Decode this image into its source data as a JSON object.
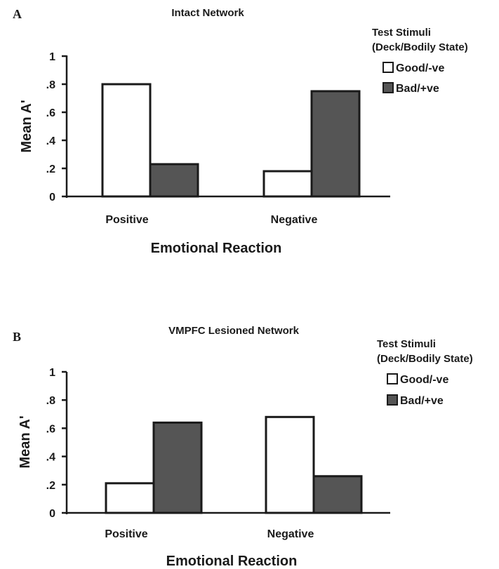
{
  "colors": {
    "good": "#ffffff",
    "bad": "#555555",
    "ink": "#1a1a1a"
  },
  "legend_title_1": "Test Stimuli",
  "legend_title_2": "(Deck/Bodily State)",
  "chart_data": [
    {
      "panel": "A",
      "type": "bar",
      "title": "Intact Network",
      "xlabel": "Emotional Reaction",
      "ylabel": "Mean A'",
      "ylim": [
        0,
        1
      ],
      "yticks": [
        0,
        0.2,
        0.4,
        0.6,
        0.8,
        1
      ],
      "yticklabels": [
        "0",
        ".2",
        ".4",
        ".6",
        ".8",
        "1"
      ],
      "categories": [
        "Positive",
        "Negative"
      ],
      "series": [
        {
          "name": "Good/-ve",
          "color_key": "good",
          "values": [
            0.8,
            0.18
          ]
        },
        {
          "name": "Bad/+ve",
          "color_key": "bad",
          "values": [
            0.23,
            0.75
          ]
        }
      ],
      "grid": false,
      "legend_position": "top-right"
    },
    {
      "panel": "B",
      "type": "bar",
      "title": "VMPFC Lesioned Network",
      "xlabel": "Emotional Reaction",
      "ylabel": "Mean A'",
      "ylim": [
        0,
        1
      ],
      "yticks": [
        0,
        0.2,
        0.4,
        0.6,
        0.8,
        1
      ],
      "yticklabels": [
        "0",
        ".2",
        ".4",
        ".6",
        ".8",
        "1"
      ],
      "categories": [
        "Positive",
        "Negative"
      ],
      "series": [
        {
          "name": "Good/-ve",
          "color_key": "good",
          "values": [
            0.21,
            0.68
          ]
        },
        {
          "name": "Bad/+ve",
          "color_key": "bad",
          "values": [
            0.64,
            0.26
          ]
        }
      ],
      "grid": false,
      "legend_position": "right"
    }
  ]
}
